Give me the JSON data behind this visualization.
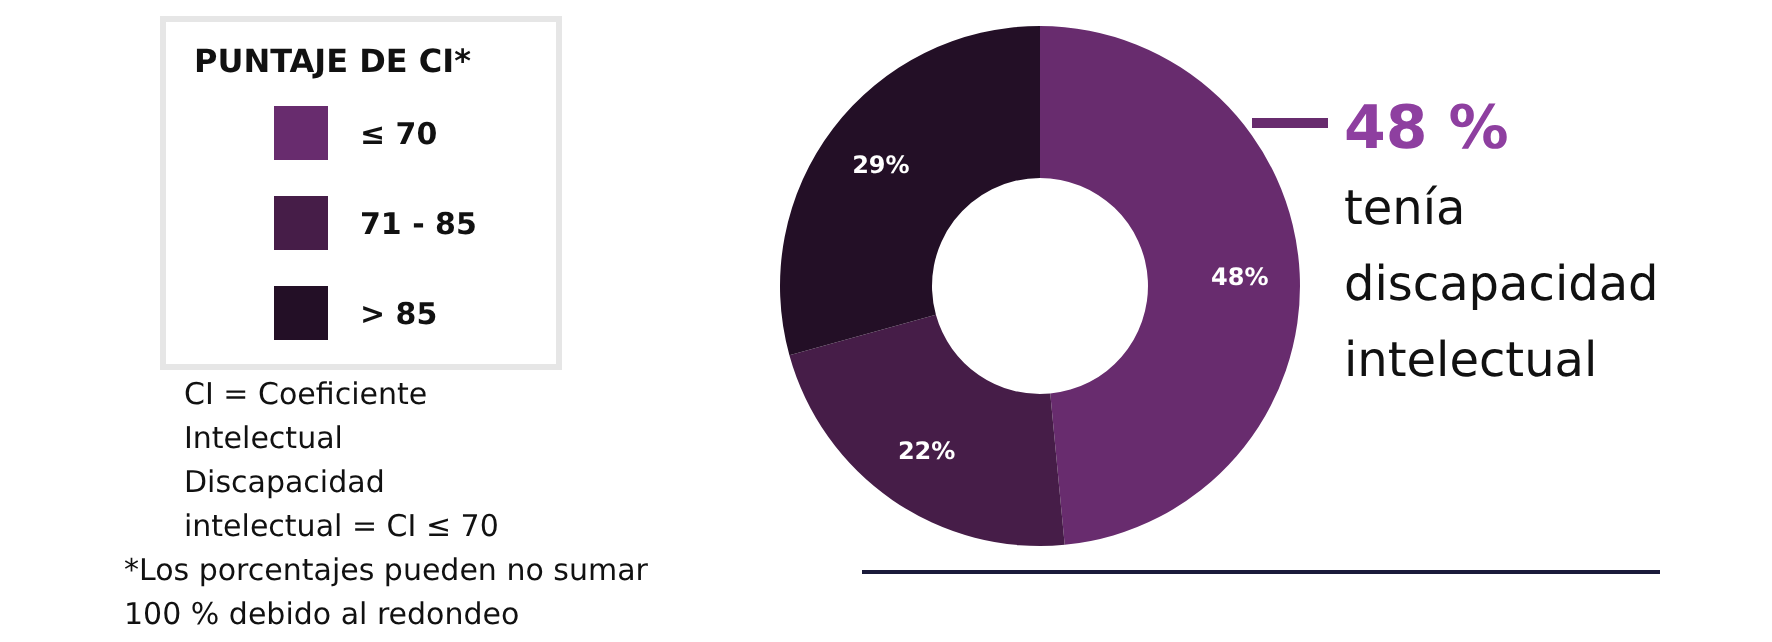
{
  "chart_data": {
    "type": "donut",
    "legend_title": "PUNTAJE DE CI*",
    "legend": "top left",
    "categories": [
      "≤ 70",
      "71 - 85",
      "> 85"
    ],
    "values": [
      48,
      22,
      29
    ],
    "colors": [
      "#682c6e",
      "#461d48",
      "#230f26"
    ],
    "value_labels": [
      "48%",
      "22%",
      "29%"
    ],
    "annotations": [
      "48 %",
      "tenía discapacidad intelectual",
      "CI = Coeficiente Intelectual",
      "Discapacidad intelectual = CI ≤ 70",
      "*Los porcentajes pueden no sumar 100 % debido al redondeo"
    ]
  }
}
